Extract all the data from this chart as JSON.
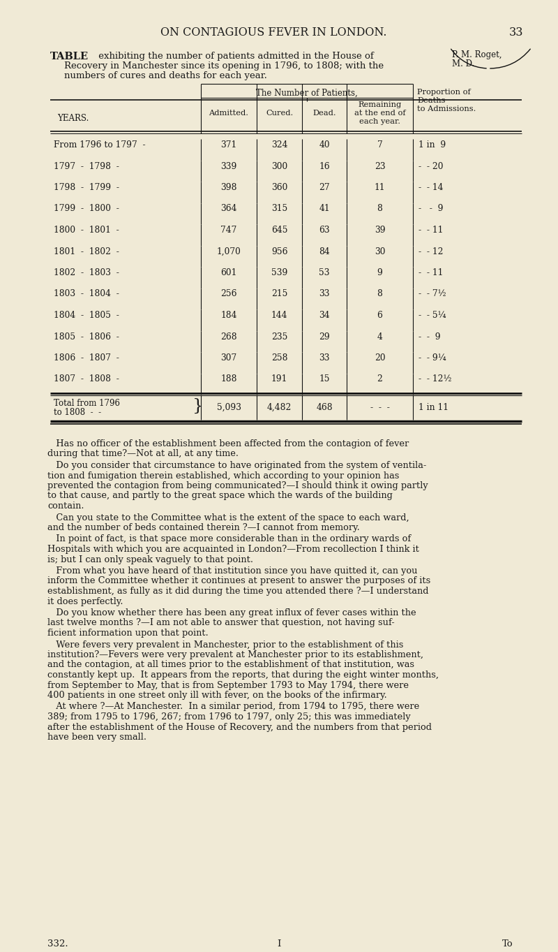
{
  "bg_color": "#f0ead6",
  "page_header": "ON CONTAGIOUS FEVER IN LONDON.",
  "page_number": "33",
  "attribution_line1": "P. M. Roget,",
  "attribution_line2": "M. D.",
  "table_caption_bold": "TABLE",
  "table_caption_rest": " exhibiting the number of patients admitted in the House of",
  "table_caption_line2": "Recovery in Manchester since its opening in 1796, to 1808; with the",
  "table_caption_line3": "numbers of cures and deaths for each year.",
  "group_header": "The Number of Patients,",
  "rows": [
    [
      "From 1796 to 1797  -",
      "371",
      "324",
      "40",
      "7",
      "1 in  9"
    ],
    [
      "1797  -  1798  -",
      "339",
      "300",
      "16",
      "23",
      "-  - 20"
    ],
    [
      "1798  -  1799  -",
      "398",
      "360",
      "27",
      "11",
      "-  - 14"
    ],
    [
      "1799  -  1800  -",
      "364",
      "315",
      "41",
      "8",
      "-   -  9"
    ],
    [
      "1800  -  1801  -",
      "747",
      "645",
      "63",
      "39",
      "-  - 11"
    ],
    [
      "1801  -  1802  -",
      "1,070",
      "956",
      "84",
      "30",
      "-  - 12"
    ],
    [
      "1802  -  1803  -",
      "601",
      "539",
      "53",
      "9",
      "-  - 11"
    ],
    [
      "1803  -  1804  -",
      "256",
      "215",
      "33",
      "8",
      "-  - 7½"
    ],
    [
      "1804  -  1805  -",
      "184",
      "144",
      "34",
      "6",
      "-  - 5¼"
    ],
    [
      "1805  -  1806  -",
      "268",
      "235",
      "29",
      "4",
      "-  -  9"
    ],
    [
      "1806  -  1807  -",
      "307",
      "258",
      "33",
      "20",
      "-  - 9¼"
    ],
    [
      "1807  -  1808  -",
      "188",
      "191",
      "15",
      "2",
      "-  - 12½"
    ]
  ],
  "total_row": [
    "5,093",
    "4,482",
    "468",
    "-  -  -",
    "1 in 11"
  ],
  "body_paragraphs": [
    [
      "   Has no officer of the establishment been affected from the contagion of fever",
      "during that time?—Not at all, at any time."
    ],
    [
      "   Do you consider that circumstance to have originated from the system of ventila-",
      "tion and fumigation therein established, which according to your opinion has",
      "prevented the contagion from being communicated?—I should think it owing partly",
      "to that cause, and partly to the great space which the wards of the building",
      "contain."
    ],
    [
      "   Can you state to the Committee what is the extent of the space to each ward,",
      "and the number of beds contained therein ?—I cannot from memory."
    ],
    [
      "   In point of fact, is that space more considerable than in the ordinary wards of",
      "Hospitals with which you are acquainted in London?—From recollection I think it",
      "is; but I can only speak vaguely to that point."
    ],
    [
      "   From what you have heard of that institution since you have quitted it, can you",
      "inform the Committee whether it continues at present to answer the purposes of its",
      "establishment, as fully as it did during the time you attended there ?—I understand",
      "it does perfectly."
    ],
    [
      "   Do you know whether there has been any great influx of fever cases within the",
      "last twelve months ?—I am not able to answer that question, not having suf-",
      "ficient information upon that point."
    ],
    [
      "   Were fevers very prevalent in Manchester, prior to the establishment of this",
      "institution?—Fevers were very prevalent at Manchester prior to its establishment,",
      "and the contagion, at all times prior to the establishment of that institution, was",
      "constantly kept up.  It appears from the reports, that during the eight winter months,",
      "from September to May, that is from September 1793 to May 1794, there were",
      "400 patients in one street only ill with fever, on the books of the infirmary."
    ],
    [
      "   At where ?—At Manchester.  In a similar period, from 1794 to 1795, there were",
      "389; from 1795 to 1796, 267; from 1796 to 1797, only 25; this was immediately",
      "after the establishment of the House of Recovery, and the numbers from that period",
      "have been very small."
    ]
  ],
  "footer_left": "332.",
  "footer_center": "I",
  "footer_right": "To"
}
